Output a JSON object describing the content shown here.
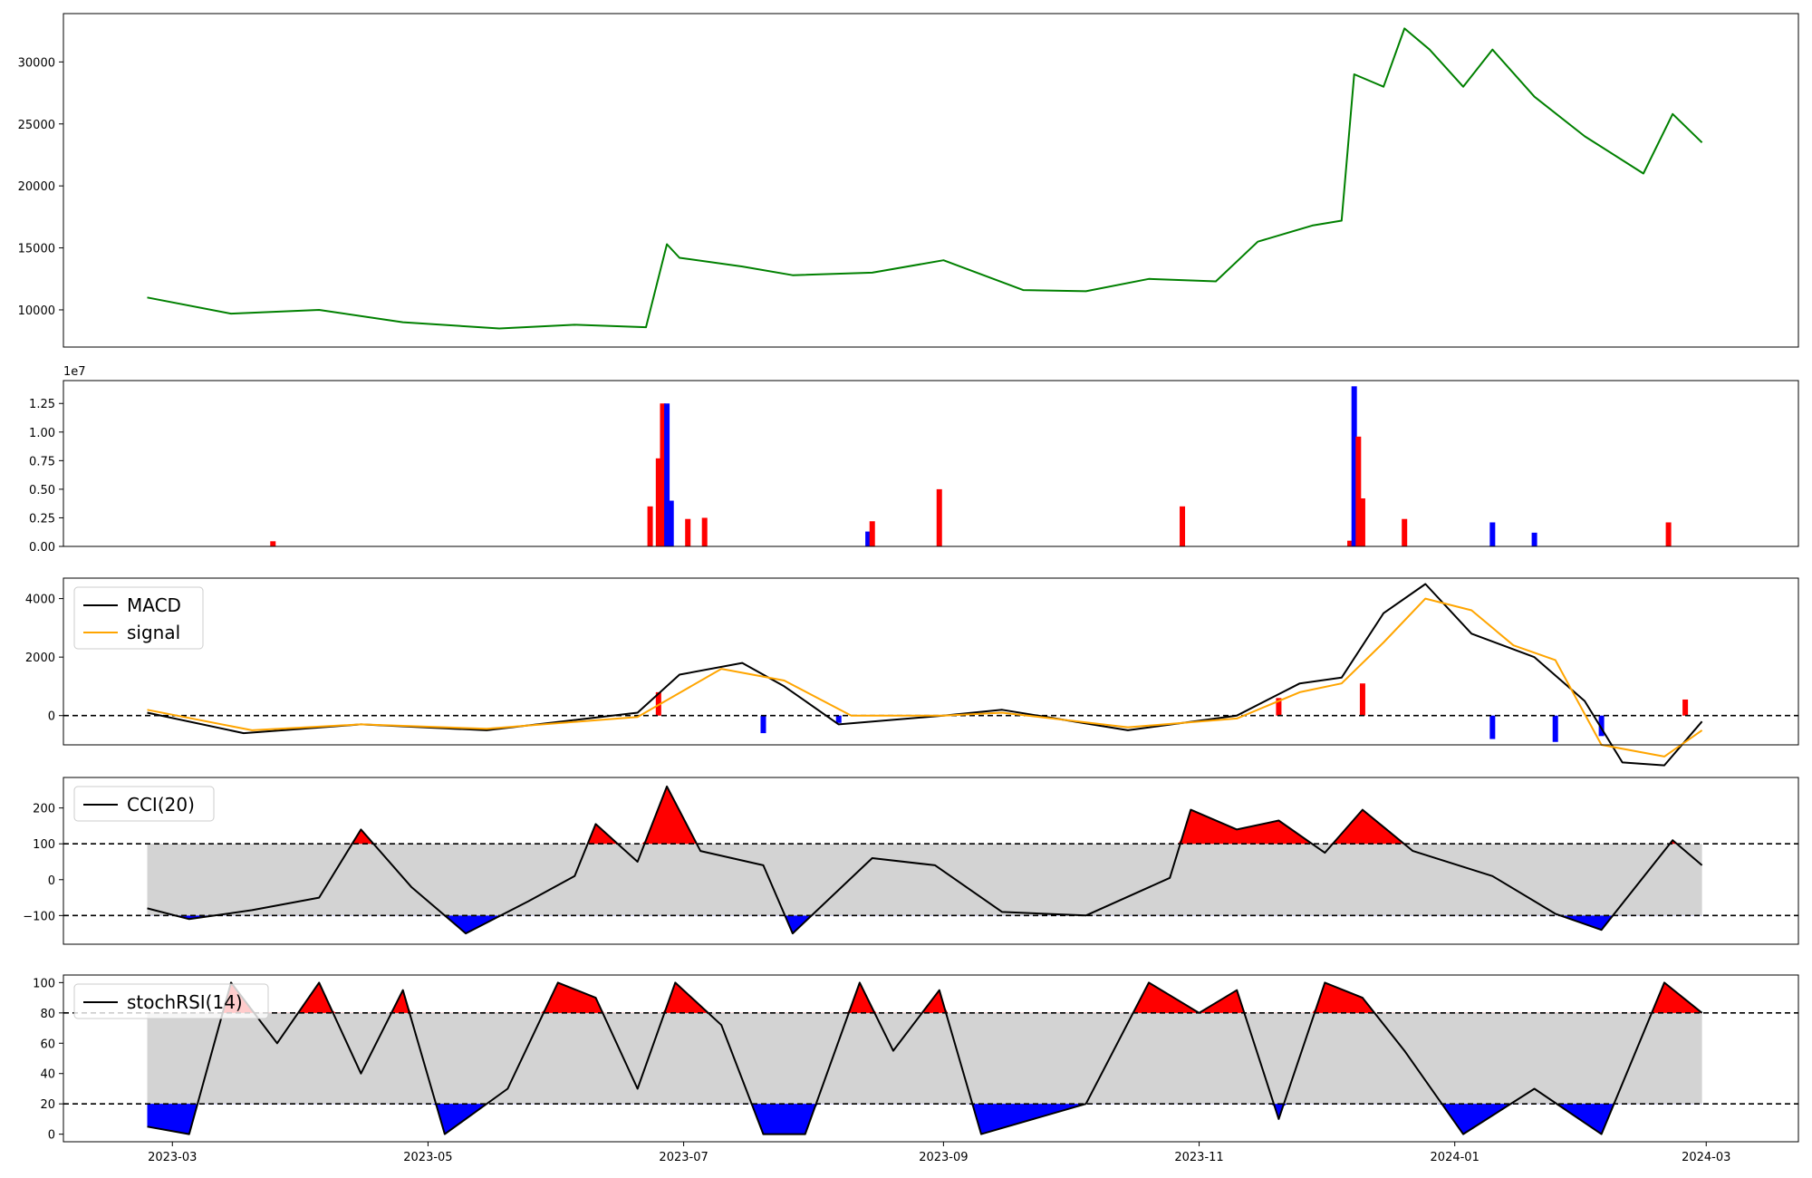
{
  "chart_data": [
    {
      "type": "line",
      "name": "price",
      "color": "#008000",
      "x": [
        "2023-02-23",
        "2023-03-15",
        "2023-04-05",
        "2023-04-25",
        "2023-05-18",
        "2023-06-05",
        "2023-06-22",
        "2023-06-27",
        "2023-06-30",
        "2023-07-15",
        "2023-07-27",
        "2023-08-15",
        "2023-09-01",
        "2023-09-20",
        "2023-10-05",
        "2023-10-20",
        "2023-11-05",
        "2023-11-15",
        "2023-11-28",
        "2023-12-05",
        "2023-12-08",
        "2023-12-15",
        "2023-12-20",
        "2023-12-26",
        "2024-01-03",
        "2024-01-10",
        "2024-01-20",
        "2024-02-01",
        "2024-02-15",
        "2024-02-22",
        "2024-02-29"
      ],
      "y": [
        11000,
        9700,
        10000,
        9000,
        8500,
        8800,
        8600,
        15300,
        14200,
        13500,
        12800,
        13000,
        14000,
        11600,
        11500,
        12500,
        12300,
        15500,
        16800,
        17200,
        29000,
        28000,
        32700,
        31000,
        28000,
        31000,
        27200,
        24000,
        21000,
        25800,
        23500
      ],
      "ylim": [
        7000,
        33900
      ],
      "yticks": [
        10000,
        15000,
        20000,
        25000,
        30000
      ]
    },
    {
      "type": "bar",
      "name": "volume",
      "scale_label": "1e7",
      "ylim": [
        0,
        14500000
      ],
      "yticks": [
        0,
        2500000,
        5000000,
        7500000,
        10000000,
        12500000
      ],
      "ytick_labels": [
        "0.00",
        "0.25",
        "0.50",
        "0.75",
        "1.00",
        "1.25"
      ],
      "up_color": "#ff0000",
      "down_color": "#0000ff",
      "x": [
        "2023-03-25",
        "2023-06-23",
        "2023-06-25",
        "2023-06-26",
        "2023-06-27",
        "2023-06-28",
        "2023-07-02",
        "2023-07-06",
        "2023-08-14",
        "2023-08-15",
        "2023-08-31",
        "2023-10-28",
        "2023-12-07",
        "2023-12-08",
        "2023-12-09",
        "2023-12-10",
        "2023-12-20",
        "2024-01-10",
        "2024-01-20",
        "2024-02-21"
      ],
      "values": [
        450000,
        3500000,
        7700000,
        12500000,
        12500000,
        4000000,
        2400000,
        2500000,
        1300000,
        2200000,
        5000000,
        3500000,
        500000,
        14000000,
        9600000,
        4200000,
        2400000,
        2100000,
        1200000,
        2100000
      ],
      "direction": [
        "up",
        "up",
        "up",
        "up",
        "down",
        "down",
        "up",
        "up",
        "down",
        "up",
        "up",
        "up",
        "up",
        "down",
        "up",
        "up",
        "up",
        "down",
        "down",
        "up"
      ]
    },
    {
      "type": "line",
      "name": "macd-panel",
      "legend": [
        "MACD",
        "signal"
      ],
      "ylim": [
        -1000,
        4700
      ],
      "yticks": [
        0,
        2000,
        4000
      ],
      "series": [
        {
          "name": "MACD",
          "color": "#000000",
          "x": [
            "2023-02-23",
            "2023-03-18",
            "2023-04-15",
            "2023-05-15",
            "2023-06-20",
            "2023-06-30",
            "2023-07-15",
            "2023-07-25",
            "2023-08-07",
            "2023-09-01",
            "2023-09-15",
            "2023-10-15",
            "2023-11-10",
            "2023-11-25",
            "2023-12-05",
            "2023-12-15",
            "2023-12-25",
            "2024-01-05",
            "2024-01-20",
            "2024-02-01",
            "2024-02-10",
            "2024-02-20",
            "2024-02-29"
          ],
          "y": [
            100,
            -600,
            -300,
            -500,
            100,
            1400,
            1800,
            1000,
            -300,
            0,
            200,
            -500,
            0,
            1100,
            1300,
            3500,
            4500,
            2800,
            2000,
            500,
            -1600,
            -1700,
            -200
          ]
        },
        {
          "name": "signal",
          "color": "#ffa500",
          "x": [
            "2023-02-23",
            "2023-03-20",
            "2023-04-15",
            "2023-05-15",
            "2023-06-20",
            "2023-07-10",
            "2023-07-25",
            "2023-08-10",
            "2023-09-01",
            "2023-09-15",
            "2023-10-15",
            "2023-11-10",
            "2023-11-25",
            "2023-12-05",
            "2023-12-15",
            "2023-12-25",
            "2024-01-05",
            "2024-01-15",
            "2024-01-25",
            "2024-02-05",
            "2024-02-20",
            "2024-02-29"
          ],
          "y": [
            200,
            -500,
            -300,
            -450,
            -50,
            1600,
            1200,
            0,
            0,
            100,
            -400,
            -100,
            800,
            1100,
            2500,
            4000,
            3600,
            2400,
            1900,
            -1000,
            -1400,
            -500
          ]
        }
      ],
      "hist_x": [
        "2023-06-25",
        "2023-07-20",
        "2023-08-07",
        "2023-11-20",
        "2023-12-10",
        "2024-01-10",
        "2024-01-25",
        "2024-02-05",
        "2024-02-25"
      ],
      "hist": [
        800,
        -600,
        -250,
        600,
        1100,
        -800,
        -900,
        -700,
        550
      ]
    },
    {
      "type": "area",
      "name": "cci-panel",
      "legend": [
        "CCI(20)"
      ],
      "ylim": [
        -180,
        285
      ],
      "yticks": [
        -100,
        0,
        100,
        200
      ],
      "ytick_labels": [
        "−100",
        "0",
        "100",
        "200"
      ],
      "thresholds": [
        100,
        -100
      ],
      "x": [
        "2023-02-23",
        "2023-03-05",
        "2023-03-20",
        "2023-04-05",
        "2023-04-15",
        "2023-04-27",
        "2023-05-10",
        "2023-05-25",
        "2023-06-05",
        "2023-06-10",
        "2023-06-20",
        "2023-06-27",
        "2023-07-05",
        "2023-07-20",
        "2023-07-27",
        "2023-08-15",
        "2023-08-30",
        "2023-09-15",
        "2023-10-05",
        "2023-10-25",
        "2023-10-30",
        "2023-11-10",
        "2023-11-20",
        "2023-12-01",
        "2023-12-10",
        "2023-12-22",
        "2024-01-10",
        "2024-01-25",
        "2024-02-05",
        "2024-02-22",
        "2024-02-29"
      ],
      "y": [
        -80,
        -110,
        -85,
        -50,
        140,
        -20,
        -150,
        -60,
        10,
        155,
        50,
        260,
        80,
        40,
        -150,
        60,
        40,
        -90,
        -100,
        5,
        195,
        140,
        165,
        75,
        195,
        80,
        10,
        -95,
        -140,
        110,
        40
      ]
    },
    {
      "type": "area",
      "name": "stochrsi-panel",
      "legend": [
        "stochRSI(14)"
      ],
      "ylim": [
        -5,
        105
      ],
      "yticks": [
        0,
        20,
        40,
        60,
        80,
        100
      ],
      "thresholds": [
        80,
        20
      ],
      "x": [
        "2023-02-23",
        "2023-03-05",
        "2023-03-15",
        "2023-03-26",
        "2023-04-05",
        "2023-04-15",
        "2023-04-25",
        "2023-05-05",
        "2023-05-20",
        "2023-06-01",
        "2023-06-10",
        "2023-06-20",
        "2023-06-29",
        "2023-07-10",
        "2023-07-20",
        "2023-07-30",
        "2023-08-12",
        "2023-08-20",
        "2023-08-31",
        "2023-09-10",
        "2023-10-05",
        "2023-10-20",
        "2023-11-01",
        "2023-11-10",
        "2023-11-20",
        "2023-12-01",
        "2023-12-10",
        "2023-12-20",
        "2024-01-03",
        "2024-01-20",
        "2024-02-05",
        "2024-02-20",
        "2024-02-29"
      ],
      "y": [
        5,
        0,
        100,
        60,
        100,
        40,
        95,
        0,
        30,
        100,
        90,
        30,
        100,
        72,
        0,
        0,
        100,
        55,
        95,
        0,
        20,
        100,
        80,
        95,
        10,
        100,
        90,
        55,
        0,
        30,
        0,
        100,
        80
      ]
    }
  ],
  "x_axis": {
    "ticks": [
      "2023-03-01",
      "2023-05-01",
      "2023-07-01",
      "2023-09-01",
      "2023-11-01",
      "2024-01-01",
      "2024-03-01"
    ],
    "tick_labels": [
      "2023-03",
      "2023-05",
      "2023-07",
      "2023-09",
      "2023-11",
      "2024-01",
      "2024-03"
    ],
    "xlim": [
      "2023-02-03",
      "2024-03-23"
    ]
  },
  "colors": {
    "overbought": "#ff0000",
    "oversold": "#0000ff",
    "neutral_band": "#d3d3d3",
    "threshold_line": "#000000"
  }
}
